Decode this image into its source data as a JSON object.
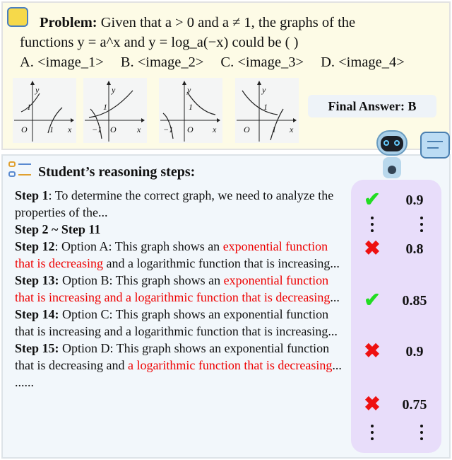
{
  "problem": {
    "label": "Problem:",
    "line1": " Given that a > 0 and a ≠ 1, the graphs of the",
    "line2": "functions y = a^x and y = log_a(−x) could be ( )",
    "options": [
      "A. <image_1>",
      "B. <image_2>",
      "C. <image_3>",
      "D. <image_4>"
    ],
    "graphs": [
      {
        "labels": [
          "y",
          "1",
          "O",
          "1",
          "x"
        ]
      },
      {
        "labels": [
          "y",
          "1",
          "−1",
          "O",
          "x"
        ]
      },
      {
        "labels": [
          "y",
          "1",
          "−1",
          "O",
          "x"
        ]
      },
      {
        "labels": [
          "y",
          "1",
          "O",
          "1",
          "x"
        ]
      }
    ],
    "final_answer": "Final Answer: B"
  },
  "reasoning": {
    "title": "Student’s reasoning steps:",
    "steps": [
      {
        "label": "Step 1",
        "segments": [
          {
            "t": ": To determine the correct graph, we need to analyze the properties of the...",
            "red": false
          }
        ]
      },
      {
        "label": "Step 2 ~ Step 11",
        "segments": []
      },
      {
        "label": "Step 12",
        "segments": [
          {
            "t": ": Option A: This graph shows an ",
            "red": false
          },
          {
            "t": "exponential function that is decreasing",
            "red": true
          },
          {
            "t": " and a logarithmic function that is increasing...",
            "red": false
          }
        ]
      },
      {
        "label": "Step 13:",
        "segments": [
          {
            "t": " Option B: This graph shows an ",
            "red": false
          },
          {
            "t": "exponential function that is increasing and a logarithmic function that is decreasing",
            "red": true
          },
          {
            "t": "...",
            "red": false
          }
        ]
      },
      {
        "label": "Step 14:",
        "segments": [
          {
            "t": " Option C: This graph shows an exponential function that is increasing and a logarithmic function that is increasing...",
            "red": false
          }
        ]
      },
      {
        "label": "Step 15:",
        "segments": [
          {
            "t": " Option D: This graph shows an exponential function that is decreasing and ",
            "red": false
          },
          {
            "t": "a logarithmic function that is decreasing",
            "red": true
          },
          {
            "t": "...",
            "red": false
          }
        ]
      }
    ],
    "ellipsis": "......"
  },
  "scores": [
    {
      "verdict": "correct",
      "score": "0.9"
    },
    {
      "verdict": "incorrect",
      "score": "0.8"
    },
    {
      "verdict": "correct",
      "score": "0.85"
    },
    {
      "verdict": "incorrect",
      "score": "0.9"
    },
    {
      "verdict": "incorrect",
      "score": "0.75"
    }
  ],
  "colors": {
    "correct": "#22dd22",
    "incorrect": "#ee1111",
    "highlight": "#ee0000",
    "panel": "#e8ddfa"
  }
}
